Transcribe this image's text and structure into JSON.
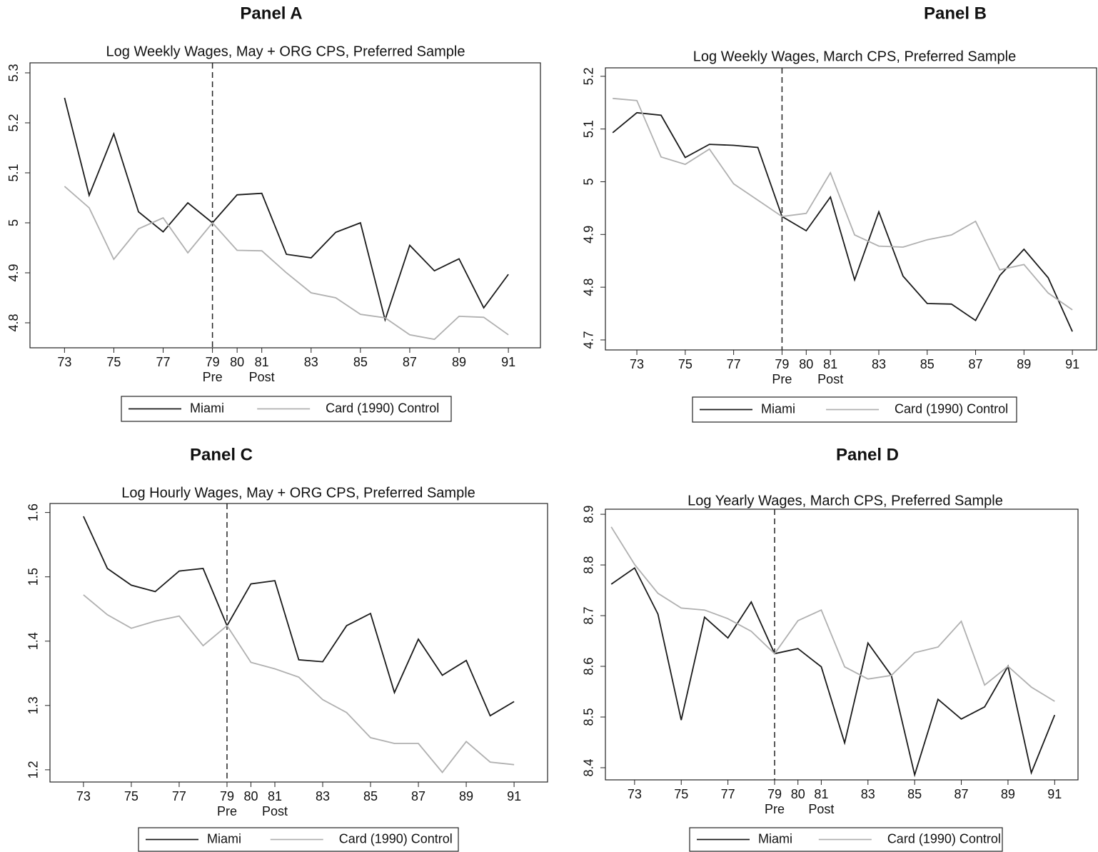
{
  "chart_data": [
    {
      "type": "line",
      "panel": "Panel A",
      "title": "Log Weekly Wages, May + ORG CPS, Preferred Sample",
      "x": [
        73,
        74,
        75,
        76,
        77,
        78,
        79,
        80,
        81,
        82,
        83,
        84,
        85,
        86,
        87,
        88,
        89,
        90,
        91
      ],
      "series": [
        {
          "name": "Miami",
          "color": "#1a1a1a",
          "values": [
            5.25,
            5.055,
            5.178,
            5.022,
            4.982,
            5.04,
            5.0,
            5.056,
            5.059,
            4.937,
            4.93,
            4.981,
            5.0,
            4.806,
            4.955,
            4.904,
            4.928,
            4.83,
            4.897
          ]
        },
        {
          "name": "Card (1990) Control",
          "color": "#b0b0b0",
          "values": [
            5.073,
            5.03,
            4.927,
            4.988,
            5.01,
            4.94,
            5.0,
            4.945,
            4.944,
            4.9,
            4.86,
            4.85,
            4.817,
            4.81,
            4.776,
            4.767,
            4.813,
            4.811,
            4.776
          ]
        }
      ],
      "xlim": [
        71.6,
        92.3
      ],
      "ylim": [
        4.75,
        5.32
      ],
      "xticks": [
        73,
        75,
        77,
        79,
        80,
        81,
        83,
        85,
        87,
        89,
        91
      ],
      "yticks": [
        4.8,
        4.9,
        5,
        5.1,
        5.2,
        5.3
      ],
      "vline": 79,
      "x_annotations": [
        {
          "x": 79,
          "label": "Pre"
        },
        {
          "x": 81,
          "label": "Post"
        }
      ]
    },
    {
      "type": "line",
      "panel": "Panel B",
      "title": "Log Weekly Wages, March CPS, Preferred Sample",
      "x": [
        72,
        73,
        74,
        75,
        76,
        77,
        78,
        79,
        80,
        81,
        82,
        83,
        84,
        85,
        86,
        87,
        88,
        89,
        90,
        91
      ],
      "series": [
        {
          "name": "Miami",
          "color": "#1a1a1a",
          "values": [
            5.093,
            5.131,
            5.126,
            5.046,
            5.071,
            5.069,
            5.065,
            4.934,
            4.907,
            4.971,
            4.814,
            4.943,
            4.821,
            4.769,
            4.768,
            4.737,
            4.822,
            4.872,
            4.818,
            4.716
          ]
        },
        {
          "name": "Card (1990) Control",
          "color": "#b0b0b0",
          "values": [
            5.158,
            5.154,
            5.047,
            5.033,
            5.062,
            4.996,
            4.965,
            4.934,
            4.94,
            5.017,
            4.899,
            4.878,
            4.876,
            4.89,
            4.899,
            4.925,
            4.833,
            4.843,
            4.789,
            4.757
          ]
        }
      ],
      "xlim": [
        71.7,
        92
      ],
      "ylim": [
        4.681,
        5.216
      ],
      "xticks": [
        73,
        75,
        77,
        79,
        80,
        81,
        83,
        85,
        87,
        89,
        91
      ],
      "yticks": [
        4.7,
        4.8,
        4.9,
        5,
        5.1,
        5.2
      ],
      "vline": 79,
      "x_annotations": [
        {
          "x": 79,
          "label": "Pre"
        },
        {
          "x": 81,
          "label": "Post"
        }
      ]
    },
    {
      "type": "line",
      "panel": "Panel C",
      "title": "Log Hourly Wages, May + ORG CPS, Preferred Sample",
      "x": [
        73,
        74,
        75,
        76,
        77,
        78,
        79,
        80,
        81,
        82,
        83,
        84,
        85,
        86,
        87,
        88,
        89,
        90,
        91
      ],
      "series": [
        {
          "name": "Miami",
          "color": "#1a1a1a",
          "values": [
            1.594,
            1.513,
            1.487,
            1.477,
            1.509,
            1.513,
            1.424,
            1.489,
            1.494,
            1.371,
            1.368,
            1.424,
            1.443,
            1.32,
            1.403,
            1.347,
            1.37,
            1.284,
            1.306
          ]
        },
        {
          "name": "Card (1990) Control",
          "color": "#b0b0b0",
          "values": [
            1.472,
            1.441,
            1.42,
            1.431,
            1.439,
            1.393,
            1.424,
            1.367,
            1.357,
            1.344,
            1.309,
            1.289,
            1.25,
            1.241,
            1.241,
            1.196,
            1.244,
            1.212,
            1.208
          ]
        }
      ],
      "xlim": [
        71.6,
        92.4
      ],
      "ylim": [
        1.181,
        1.614
      ],
      "xticks": [
        73,
        75,
        77,
        79,
        80,
        81,
        83,
        85,
        87,
        89,
        91
      ],
      "yticks": [
        1.2,
        1.3,
        1.4,
        1.5,
        1.6
      ],
      "vline": 79,
      "x_annotations": [
        {
          "x": 79,
          "label": "Pre"
        },
        {
          "x": 81,
          "label": "Post"
        }
      ]
    },
    {
      "type": "line",
      "panel": "Panel D",
      "title": "Log Yearly Wages, March CPS, Preferred Sample",
      "x": [
        72,
        73,
        74,
        75,
        76,
        77,
        78,
        79,
        80,
        81,
        82,
        83,
        84,
        85,
        86,
        87,
        88,
        89,
        90,
        91
      ],
      "series": [
        {
          "name": "Miami",
          "color": "#1a1a1a",
          "values": [
            8.762,
            8.794,
            8.703,
            8.494,
            8.697,
            8.656,
            8.727,
            8.625,
            8.635,
            8.599,
            8.449,
            8.646,
            8.582,
            8.386,
            8.535,
            8.496,
            8.52,
            8.6,
            8.39,
            8.504
          ]
        },
        {
          "name": "Card (1990) Control",
          "color": "#b0b0b0",
          "values": [
            8.875,
            8.801,
            8.744,
            8.715,
            8.711,
            8.694,
            8.669,
            8.625,
            8.69,
            8.711,
            8.599,
            8.575,
            8.582,
            8.627,
            8.638,
            8.689,
            8.563,
            8.6,
            8.559,
            8.531
          ]
        }
      ],
      "xlim": [
        71.75,
        92
      ],
      "ylim": [
        8.376,
        8.91
      ],
      "xticks": [
        73,
        75,
        77,
        79,
        80,
        81,
        83,
        85,
        87,
        89,
        91
      ],
      "yticks": [
        8.4,
        8.5,
        8.6,
        8.7,
        8.8,
        8.9
      ],
      "vline": 79,
      "x_annotations": [
        {
          "x": 79,
          "label": "Pre"
        },
        {
          "x": 81,
          "label": "Post"
        }
      ]
    }
  ]
}
